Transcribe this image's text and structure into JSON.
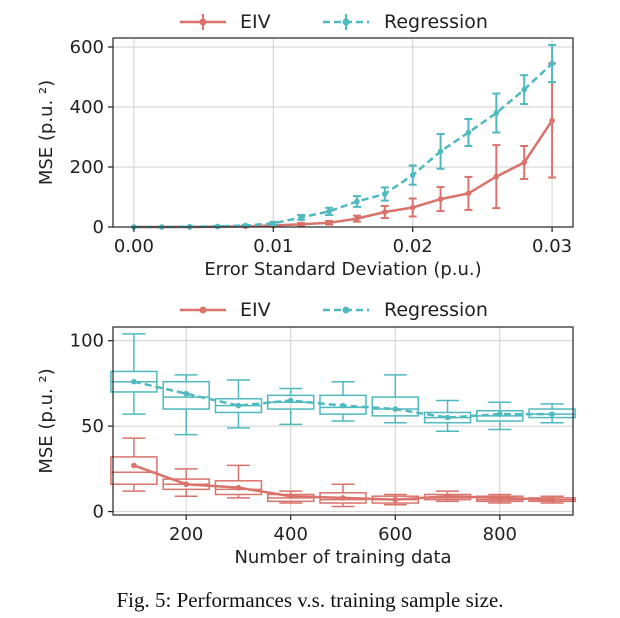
{
  "caption": "Fig. 5: Performances v.s. training sample size.",
  "colors": {
    "eiv": "#d9736b",
    "regression": "#4fb9bf"
  },
  "chart_data": [
    {
      "type": "line",
      "xlabel": "Error Standard Deviation (p.u.)",
      "ylabel": "MSE (p.u. ²)",
      "xlim": [
        -0.0015,
        0.0315
      ],
      "ylim": [
        0,
        630
      ],
      "xticks": [
        0.0,
        0.01,
        0.02,
        0.03
      ],
      "xtick_labels": [
        "0.00",
        "0.01",
        "0.02",
        "0.03"
      ],
      "yticks": [
        0,
        200,
        400,
        600
      ],
      "ytick_labels": [
        "0",
        "200",
        "400",
        "600"
      ],
      "legend": "top, outside",
      "grid": true,
      "x": [
        0.0,
        0.002,
        0.004,
        0.006,
        0.008,
        0.01,
        0.012,
        0.014,
        0.016,
        0.018,
        0.02,
        0.022,
        0.024,
        0.026,
        0.028,
        0.03
      ],
      "series": [
        {
          "name": "EIV",
          "style": "solid",
          "values": [
            0,
            0,
            0,
            1,
            2,
            5,
            9,
            14,
            28,
            50,
            65,
            93,
            112,
            168,
            215,
            355
          ],
          "err": [
            0,
            0,
            0,
            0.5,
            1,
            2,
            4,
            6,
            10,
            20,
            30,
            40,
            55,
            105,
            55,
            190
          ]
        },
        {
          "name": "Regression",
          "style": "dashed",
          "values": [
            0,
            0,
            1,
            2,
            5,
            12,
            32,
            52,
            85,
            110,
            173,
            252,
            315,
            380,
            458,
            545
          ],
          "err": [
            0,
            0,
            0.5,
            1,
            2,
            5,
            8,
            12,
            18,
            22,
            32,
            58,
            45,
            65,
            48,
            62
          ]
        }
      ]
    },
    {
      "type": "box",
      "xlabel": "Number of training data",
      "ylabel": "MSE (p.u. ²)",
      "xlim": [
        60,
        940
      ],
      "ylim": [
        -2,
        108
      ],
      "xticks": [
        200,
        400,
        600,
        800
      ],
      "xtick_labels": [
        "200",
        "400",
        "600",
        "800"
      ],
      "yticks": [
        0,
        50,
        100
      ],
      "ytick_labels": [
        "0",
        "50",
        "100"
      ],
      "legend": "top, outside",
      "grid": true,
      "x": [
        100,
        200,
        300,
        400,
        500,
        600,
        700,
        800,
        900
      ],
      "series": [
        {
          "name": "EIV",
          "style": "solid",
          "boxes": [
            {
              "min": 12,
              "q1": 16,
              "median": 23,
              "q3": 32,
              "max": 43,
              "mean": 27
            },
            {
              "min": 9,
              "q1": 13,
              "median": 16,
              "q3": 19,
              "max": 25,
              "mean": 16
            },
            {
              "min": 8,
              "q1": 10,
              "median": 13,
              "q3": 18,
              "max": 27,
              "mean": 14
            },
            {
              "min": 5,
              "q1": 6,
              "median": 8,
              "q3": 10,
              "max": 12,
              "mean": 9
            },
            {
              "min": 3,
              "q1": 5,
              "median": 7,
              "q3": 11,
              "max": 16,
              "mean": 8
            },
            {
              "min": 4,
              "q1": 5,
              "median": 7,
              "q3": 9,
              "max": 10,
              "mean": 7
            },
            {
              "min": 6,
              "q1": 7,
              "median": 8,
              "q3": 10,
              "max": 12,
              "mean": 9
            },
            {
              "min": 5,
              "q1": 6,
              "median": 7,
              "q3": 9,
              "max": 10,
              "mean": 8
            },
            {
              "min": 5,
              "q1": 6,
              "median": 7,
              "q3": 8,
              "max": 9,
              "mean": 7
            }
          ]
        },
        {
          "name": "Regression",
          "style": "dashed",
          "boxes": [
            {
              "min": 57,
              "q1": 70,
              "median": 76,
              "q3": 82,
              "max": 104,
              "mean": 76
            },
            {
              "min": 45,
              "q1": 60,
              "median": 67,
              "q3": 76,
              "max": 80,
              "mean": 69
            },
            {
              "min": 49,
              "q1": 58,
              "median": 62,
              "q3": 66,
              "max": 77,
              "mean": 62
            },
            {
              "min": 51,
              "q1": 60,
              "median": 64,
              "q3": 68,
              "max": 72,
              "mean": 65
            },
            {
              "min": 53,
              "q1": 57,
              "median": 61,
              "q3": 68,
              "max": 76,
              "mean": 62
            },
            {
              "min": 52,
              "q1": 56,
              "median": 60,
              "q3": 67,
              "max": 80,
              "mean": 60
            },
            {
              "min": 47,
              "q1": 52,
              "median": 55,
              "q3": 58,
              "max": 65,
              "mean": 55
            },
            {
              "min": 48,
              "q1": 53,
              "median": 56,
              "q3": 59,
              "max": 64,
              "mean": 57
            },
            {
              "min": 52,
              "q1": 55,
              "median": 57,
              "q3": 60,
              "max": 63,
              "mean": 57
            }
          ]
        }
      ]
    }
  ]
}
